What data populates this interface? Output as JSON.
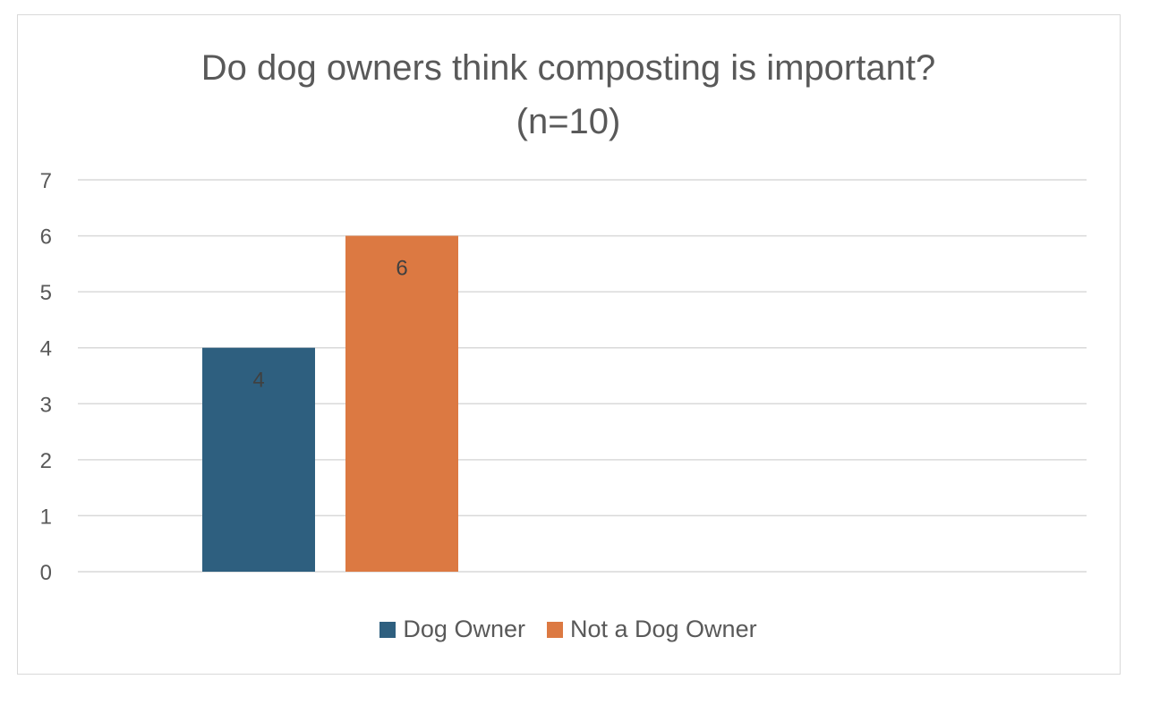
{
  "chart_data": {
    "type": "bar",
    "title_line1": "Do dog owners think composting is important?",
    "title_line2": "(n=10)",
    "categories": [
      ""
    ],
    "series": [
      {
        "name": "Dog Owner",
        "values": [
          4
        ],
        "color": "#2e5f7f"
      },
      {
        "name": "Not a Dog Owner",
        "values": [
          6
        ],
        "color": "#dc7942"
      }
    ],
    "ylim": [
      0,
      7
    ],
    "yticks": [
      "0",
      "1",
      "2",
      "3",
      "4",
      "5",
      "6",
      "7"
    ],
    "data_labels": [
      "4",
      "6"
    ],
    "grid": true,
    "legend_position": "bottom"
  }
}
